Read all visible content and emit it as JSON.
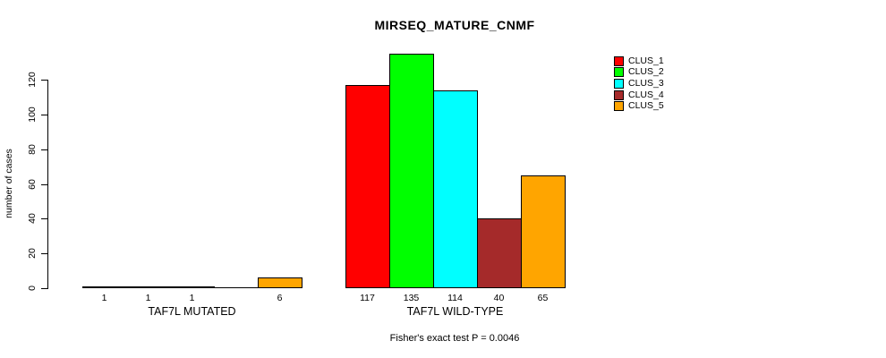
{
  "chart_data": {
    "type": "bar",
    "title": "MIRSEQ_MATURE_CNMF",
    "ylabel": "number of cases",
    "xlabel": "",
    "yticks": [
      0,
      20,
      40,
      60,
      80,
      100,
      120
    ],
    "ylim": [
      0,
      120
    ],
    "grid": false,
    "legend_position": "top-right",
    "clusters": [
      {
        "name": "CLUS_1",
        "color": "#ff0000"
      },
      {
        "name": "CLUS_2",
        "color": "#00ff00"
      },
      {
        "name": "CLUS_3",
        "color": "#00ffff"
      },
      {
        "name": "CLUS_4",
        "color": "#a52a2a"
      },
      {
        "name": "CLUS_5",
        "color": "#ffa500"
      }
    ],
    "groups": [
      {
        "label": "TAF7L MUTATED",
        "values": [
          1,
          1,
          1,
          0,
          6
        ],
        "value_labels": [
          "1",
          "1",
          "1",
          "",
          "6"
        ]
      },
      {
        "label": "TAF7L WILD-TYPE",
        "values": [
          117,
          135,
          114,
          40,
          65
        ],
        "value_labels": [
          "117",
          "135",
          "114",
          "40",
          "65"
        ]
      }
    ],
    "footnote": "Fisher's exact test P = 0.0046"
  },
  "colors": {
    "background": "#ffffff",
    "axis": "#000000",
    "text": "#000000"
  }
}
